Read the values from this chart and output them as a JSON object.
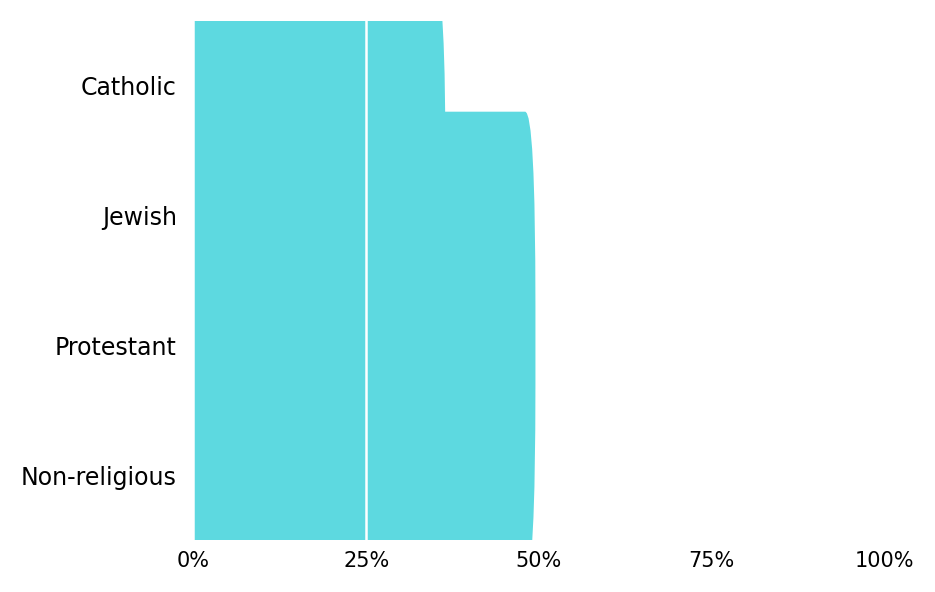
{
  "categories": [
    "Non-religious",
    "Protestant",
    "Jewish",
    "Catholic"
  ],
  "values": [
    47,
    48,
    35,
    28
  ],
  "bar_color": "#5DD9E0",
  "xlim": [
    0,
    100
  ],
  "xticks": [
    0,
    25,
    50,
    75,
    100
  ],
  "xticklabels": [
    "0%",
    "25%",
    "50%",
    "75%",
    "100%"
  ],
  "background_color": "#ffffff",
  "bar_height": 0.75,
  "grid_color": "#ffffff",
  "tick_fontsize": 15,
  "label_fontsize": 17,
  "rounding_size": 1.5
}
